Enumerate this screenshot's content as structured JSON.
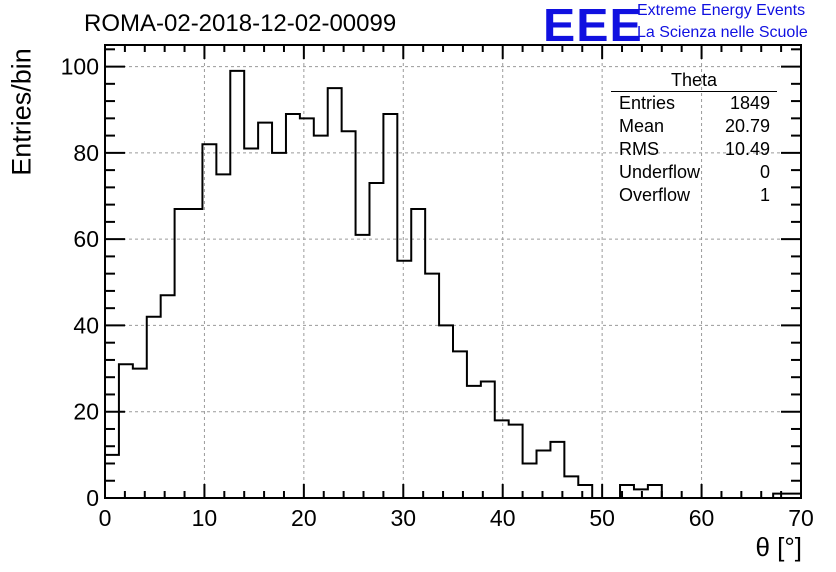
{
  "title": "ROMA-02-2018-12-02-00099",
  "logo": {
    "text": "EEE",
    "line1": "Extreme Energy Events",
    "line2": "La Scienza nelle Scuole",
    "color": "#1010e0"
  },
  "stats": {
    "name": "Theta",
    "rows": [
      {
        "label": "Entries",
        "value": "1849"
      },
      {
        "label": "Mean",
        "value": "20.79"
      },
      {
        "label": "RMS",
        "value": "10.49"
      },
      {
        "label": "Underflow",
        "value": "0"
      },
      {
        "label": "Overflow",
        "value": "1"
      }
    ]
  },
  "chart_data": {
    "type": "bar",
    "style": "step-histogram",
    "title": "ROMA-02-2018-12-02-00099",
    "xlabel": "θ [°]",
    "ylabel": "Entries/bin",
    "xlim": [
      0,
      70
    ],
    "ylim": [
      0,
      105
    ],
    "grid": true,
    "bin_width": 1.4,
    "x_ticks": [
      0,
      10,
      20,
      30,
      40,
      50,
      60,
      70
    ],
    "y_ticks": [
      0,
      20,
      40,
      60,
      80,
      100
    ],
    "values": [
      10,
      31,
      30,
      42,
      47,
      67,
      67,
      82,
      75,
      99,
      81,
      87,
      80,
      89,
      88,
      84,
      95,
      85,
      61,
      73,
      89,
      55,
      67,
      52,
      40,
      34,
      26,
      27,
      18,
      17,
      8,
      11,
      13,
      5,
      3,
      0,
      0,
      3,
      2,
      3,
      0,
      0,
      0,
      0,
      0,
      0,
      0,
      0,
      1,
      1
    ]
  }
}
